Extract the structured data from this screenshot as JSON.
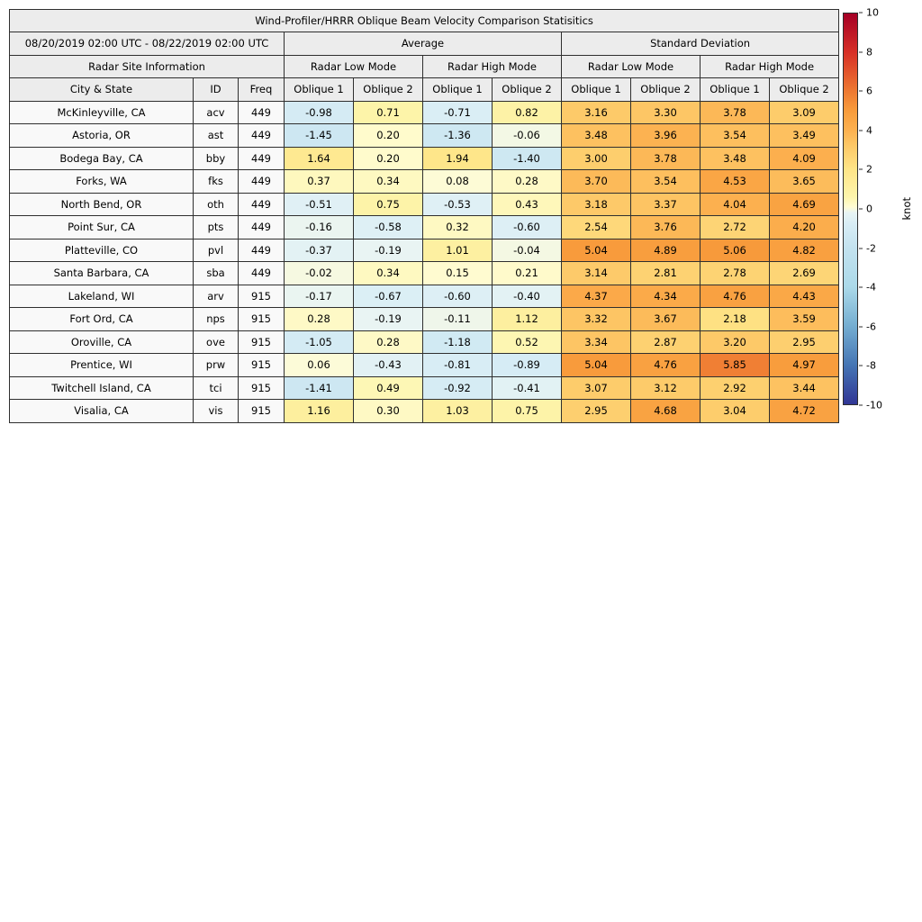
{
  "title": "Wind-Profiler/HRRR Oblique Beam Velocity Comparison Statisitics",
  "table": {
    "period": "08/20/2019 02:00 UTC - 08/22/2019 02:00 UTC",
    "section_average": "Average",
    "section_std_dev": "Standard Deviation",
    "site_info_header": "Radar Site Information",
    "low_mode_label": "Radar Low Mode",
    "high_mode_label": "Radar High Mode",
    "columns": [
      "City & State",
      "ID",
      "Freq",
      "Oblique 1",
      "Oblique 2",
      "Oblique 1",
      "Oblique 2",
      "Oblique 1",
      "Oblique 2",
      "Oblique 1",
      "Oblique 2"
    ]
  },
  "chart_data": {
    "type": "heatmap",
    "title": "Wind-Profiler/HRRR Oblique Beam Velocity Comparison Statisitics",
    "period": "08/20/2019 02:00 UTC - 08/22/2019 02:00 UTC",
    "value_range": [
      -10,
      10
    ],
    "value_columns": [
      "avg_low_oblique1",
      "avg_low_oblique2",
      "avg_high_oblique1",
      "avg_high_oblique2",
      "std_low_oblique1",
      "std_low_oblique2",
      "std_high_oblique1",
      "std_high_oblique2"
    ],
    "rows": [
      {
        "city": "McKinleyville, CA",
        "id": "acv",
        "freq": "449",
        "values": [
          -0.98,
          0.71,
          -0.71,
          0.82,
          3.16,
          3.3,
          3.78,
          3.09
        ]
      },
      {
        "city": "Astoria, OR",
        "id": "ast",
        "freq": "449",
        "values": [
          -1.45,
          0.2,
          -1.36,
          -0.06,
          3.48,
          3.96,
          3.54,
          3.49
        ]
      },
      {
        "city": "Bodega Bay, CA",
        "id": "bby",
        "freq": "449",
        "values": [
          1.64,
          0.2,
          1.94,
          -1.4,
          3.0,
          3.78,
          3.48,
          4.09
        ]
      },
      {
        "city": "Forks, WA",
        "id": "fks",
        "freq": "449",
        "values": [
          0.37,
          0.34,
          0.08,
          0.28,
          3.7,
          3.54,
          4.53,
          3.65
        ]
      },
      {
        "city": "North Bend, OR",
        "id": "oth",
        "freq": "449",
        "values": [
          -0.51,
          0.75,
          -0.53,
          0.43,
          3.18,
          3.37,
          4.04,
          4.69
        ]
      },
      {
        "city": "Point Sur, CA",
        "id": "pts",
        "freq": "449",
        "values": [
          -0.16,
          -0.58,
          0.32,
          -0.6,
          2.54,
          3.76,
          2.72,
          4.2
        ]
      },
      {
        "city": "Platteville, CO",
        "id": "pvl",
        "freq": "449",
        "values": [
          -0.37,
          -0.19,
          1.01,
          -0.04,
          5.04,
          4.89,
          5.06,
          4.82
        ]
      },
      {
        "city": "Santa Barbara, CA",
        "id": "sba",
        "freq": "449",
        "values": [
          -0.02,
          0.34,
          0.15,
          0.21,
          3.14,
          2.81,
          2.78,
          2.69
        ]
      },
      {
        "city": "Lakeland, WI",
        "id": "arv",
        "freq": "915",
        "values": [
          -0.17,
          -0.67,
          -0.6,
          -0.4,
          4.37,
          4.34,
          4.76,
          4.43
        ]
      },
      {
        "city": "Fort Ord, CA",
        "id": "nps",
        "freq": "915",
        "values": [
          0.28,
          -0.19,
          -0.11,
          1.12,
          3.32,
          3.67,
          2.18,
          3.59
        ]
      },
      {
        "city": "Oroville, CA",
        "id": "ove",
        "freq": "915",
        "values": [
          -1.05,
          0.28,
          -1.18,
          0.52,
          3.34,
          2.87,
          3.2,
          2.95
        ]
      },
      {
        "city": "Prentice, WI",
        "id": "prw",
        "freq": "915",
        "values": [
          0.06,
          -0.43,
          -0.81,
          -0.89,
          5.04,
          4.76,
          5.85,
          4.97
        ]
      },
      {
        "city": "Twitchell Island, CA",
        "id": "tci",
        "freq": "915",
        "values": [
          -1.41,
          0.49,
          -0.92,
          -0.41,
          3.07,
          3.12,
          2.92,
          3.44
        ]
      },
      {
        "city": "Visalia, CA",
        "id": "vis",
        "freq": "915",
        "values": [
          1.16,
          0.3,
          1.03,
          0.75,
          2.95,
          4.68,
          3.04,
          4.72
        ]
      }
    ],
    "colorbar": {
      "label": "knot",
      "ticks": [
        10,
        8,
        6,
        4,
        2,
        0,
        -2,
        -4,
        -6,
        -8,
        -10
      ],
      "colormap_anchors": [
        [
          0.0,
          "#313695"
        ],
        [
          0.1,
          "#4575b4"
        ],
        [
          0.2,
          "#74add1"
        ],
        [
          0.3,
          "#abd9e9"
        ],
        [
          0.4,
          "#c3e2ef"
        ],
        [
          0.46,
          "#d8edf5"
        ],
        [
          0.49,
          "#e8f4f4"
        ],
        [
          0.505,
          "#fffcd4"
        ],
        [
          0.53,
          "#fdf5ac"
        ],
        [
          0.6,
          "#fee588"
        ],
        [
          0.66,
          "#fdc968"
        ],
        [
          0.7,
          "#fcb150"
        ],
        [
          0.75,
          "#f89c3c"
        ],
        [
          0.8,
          "#ee7a32"
        ],
        [
          0.9,
          "#d73027"
        ],
        [
          1.0,
          "#a50026"
        ]
      ]
    }
  }
}
